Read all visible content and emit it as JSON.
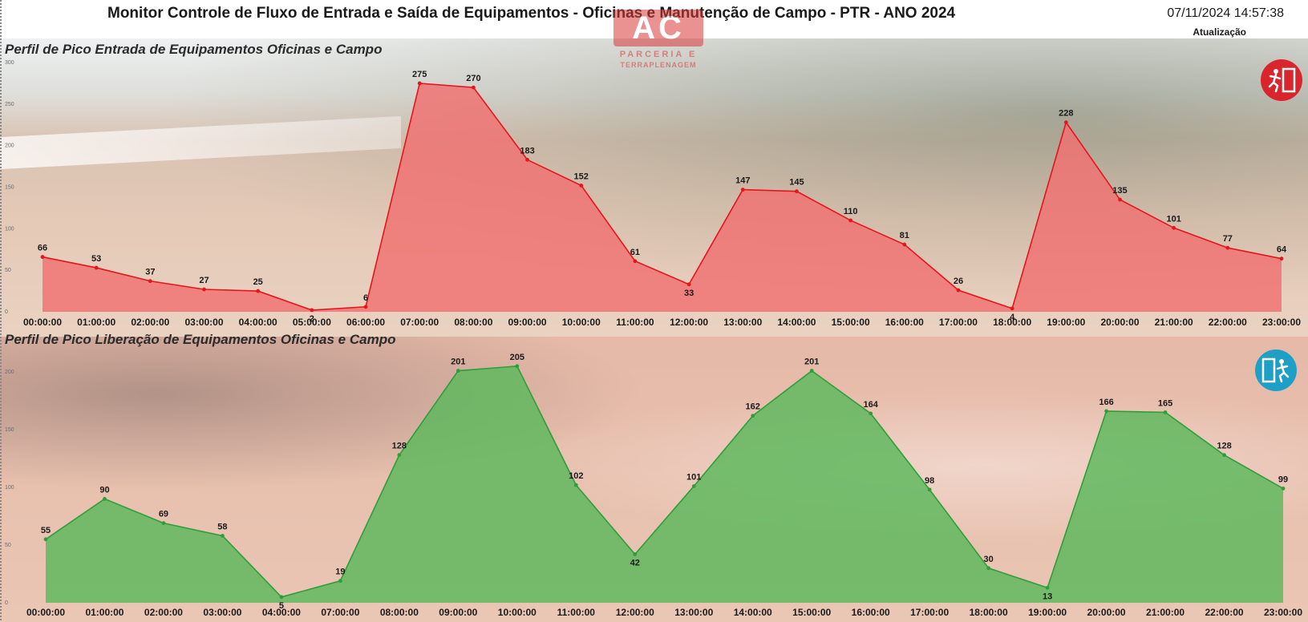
{
  "header": {
    "title": "Monitor Controle de Fluxo de Entrada e Saída de Equipamentos - Oficinas e Manutenção de Campo - PTR  - ANO 2024",
    "datetime": "07/11/2024 14:57:38",
    "update_label": "Atualização"
  },
  "logo": {
    "mark": "AC",
    "line1": "PARCERIA E",
    "line2": "TERRAPLENAGEM"
  },
  "colors": {
    "entry_fill": "#f07070",
    "entry_line": "#e8141c",
    "release_fill": "#5cb85c",
    "release_line": "#2e9e3a",
    "badge_red": "#d9262c",
    "badge_blue": "#1e9fc6"
  },
  "icons": {
    "entry": "person-entering-door-icon",
    "release": "person-exiting-door-icon"
  },
  "chart_data": [
    {
      "type": "area",
      "title": "Perfil de Pico Entrada de Equipamentos Oficinas e Campo",
      "x": [
        "00:00:00",
        "01:00:00",
        "02:00:00",
        "03:00:00",
        "04:00:00",
        "05:00:00",
        "06:00:00",
        "07:00:00",
        "08:00:00",
        "09:00:00",
        "10:00:00",
        "11:00:00",
        "12:00:00",
        "13:00:00",
        "14:00:00",
        "15:00:00",
        "16:00:00",
        "17:00:00",
        "18:00:00",
        "19:00:00",
        "20:00:00",
        "21:00:00",
        "22:00:00",
        "23:00:00"
      ],
      "values": [
        66,
        53,
        37,
        27,
        25,
        2,
        6,
        275,
        270,
        183,
        152,
        61,
        33,
        147,
        145,
        110,
        81,
        26,
        4,
        228,
        135,
        101,
        77,
        64
      ],
      "yticks": [
        0,
        50,
        100,
        150,
        200,
        250,
        300
      ],
      "ylim": [
        0,
        300
      ],
      "grid": false,
      "legend": "none"
    },
    {
      "type": "area",
      "title": "Perfil de Pico Liberação de Equipamentos Oficinas e Campo",
      "x": [
        "00:00:00",
        "01:00:00",
        "02:00:00",
        "03:00:00",
        "04:00:00",
        "07:00:00",
        "08:00:00",
        "09:00:00",
        "10:00:00",
        "11:00:00",
        "12:00:00",
        "13:00:00",
        "14:00:00",
        "15:00:00",
        "16:00:00",
        "17:00:00",
        "18:00:00",
        "19:00:00",
        "20:00:00",
        "21:00:00",
        "22:00:00",
        "23:00:00"
      ],
      "values": [
        55,
        90,
        69,
        58,
        5,
        19,
        128,
        201,
        205,
        102,
        42,
        101,
        162,
        201,
        164,
        98,
        30,
        13,
        166,
        165,
        128,
        99
      ],
      "yticks": [
        0,
        50,
        100,
        150,
        200
      ],
      "ylim": [
        0,
        200
      ],
      "grid": false,
      "legend": "none"
    }
  ]
}
